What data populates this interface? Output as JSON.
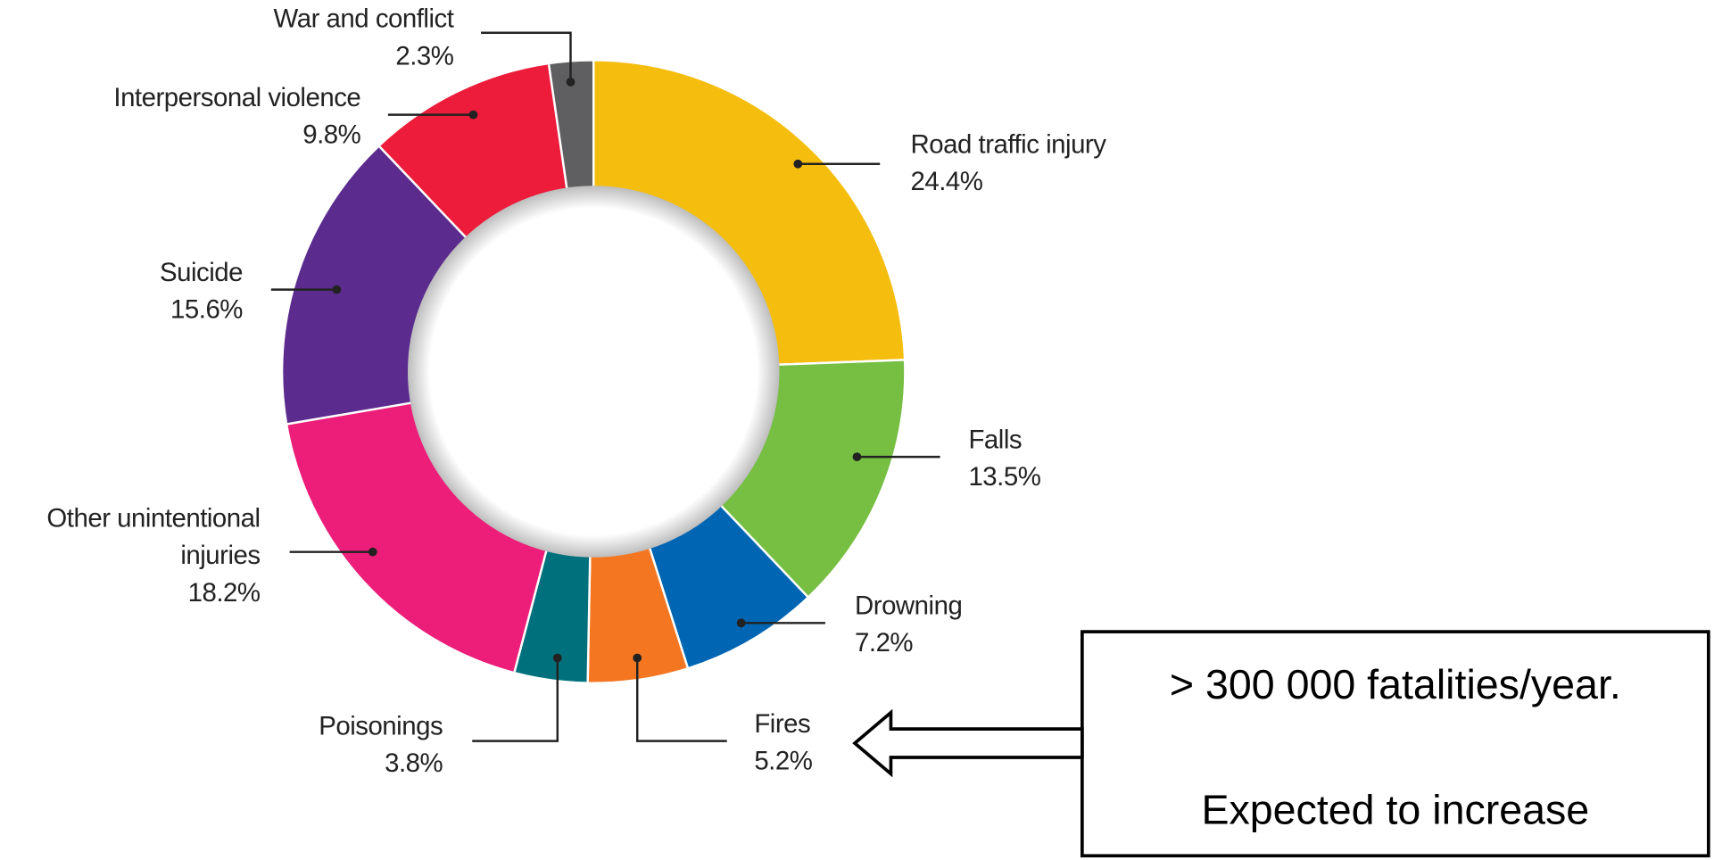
{
  "chart_data": {
    "type": "donut",
    "categories": [
      "Road traffic injury",
      "Falls",
      "Drowning",
      "Fires",
      "Poisonings",
      "Other unintentional injuries",
      "Suicide",
      "Interpersonal violence",
      "War and conflict"
    ],
    "values": [
      24.4,
      13.5,
      7.2,
      5.2,
      3.8,
      18.2,
      15.6,
      9.8,
      2.3
    ],
    "value_labels": [
      "24.4%",
      "13.5%",
      "7.2%",
      "5.2%",
      "3.8%",
      "18.2%",
      "15.6%",
      "9.8%",
      "2.3%"
    ],
    "colors": [
      "#f5be0f",
      "#76bf43",
      "#0066b3",
      "#f47621",
      "#00717c",
      "#ec1e79",
      "#5b2c8e",
      "#ec1c3a",
      "#5f5f61"
    ]
  },
  "annotation": {
    "lines": [
      "> 300 000 fatalities/year.",
      "Expected to increase"
    ]
  }
}
